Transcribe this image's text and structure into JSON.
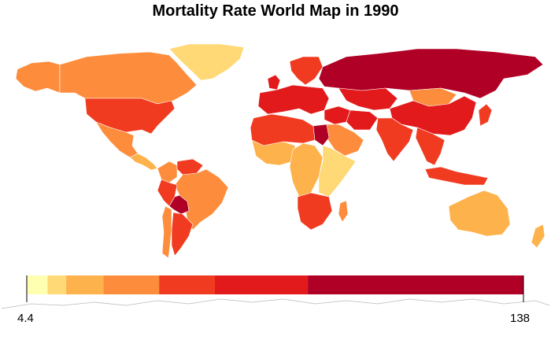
{
  "title": "Mortality Rate World Map in 1990",
  "legend": {
    "min_label": "4.4",
    "max_label": "138",
    "min": 4.4,
    "max": 138,
    "bins": [
      {
        "from": 4.4,
        "to": 10,
        "color": "#ffffb2"
      },
      {
        "from": 10,
        "to": 15,
        "color": "#fed976"
      },
      {
        "from": 15,
        "to": 25,
        "color": "#feb24c"
      },
      {
        "from": 25,
        "to": 40,
        "color": "#fd8d3c"
      },
      {
        "from": 40,
        "to": 55,
        "color": "#f03b20"
      },
      {
        "from": 55,
        "to": 80,
        "color": "#e31a1c"
      },
      {
        "from": 80,
        "to": 138,
        "color": "#b10026"
      }
    ]
  },
  "regions": [
    {
      "name": "canada",
      "level": 3
    },
    {
      "name": "alaska",
      "level": 3
    },
    {
      "name": "greenland",
      "level": 1
    },
    {
      "name": "usa",
      "level": 4
    },
    {
      "name": "mexico",
      "level": 3
    },
    {
      "name": "central-america",
      "level": 2
    },
    {
      "name": "colombia",
      "level": 3
    },
    {
      "name": "venezuela",
      "level": 4
    },
    {
      "name": "brazil",
      "level": 3
    },
    {
      "name": "peru",
      "level": 4
    },
    {
      "name": "bolivia",
      "level": 6
    },
    {
      "name": "argentina",
      "level": 4
    },
    {
      "name": "chile",
      "level": 3
    },
    {
      "name": "europe-west",
      "level": 5
    },
    {
      "name": "scandinavia",
      "level": 4
    },
    {
      "name": "uk",
      "level": 5
    },
    {
      "name": "russia",
      "level": 6
    },
    {
      "name": "kazakhstan",
      "level": 5
    },
    {
      "name": "middle-east",
      "level": 5
    },
    {
      "name": "arabia",
      "level": 3
    },
    {
      "name": "iran",
      "level": 5
    },
    {
      "name": "india",
      "level": 4
    },
    {
      "name": "china",
      "level": 5
    },
    {
      "name": "mongolia",
      "level": 3
    },
    {
      "name": "north-africa",
      "level": 4
    },
    {
      "name": "egypt",
      "level": 6
    },
    {
      "name": "west-africa",
      "level": 2
    },
    {
      "name": "central-africa",
      "level": 2
    },
    {
      "name": "east-africa",
      "level": 1
    },
    {
      "name": "southern-africa",
      "level": 4
    },
    {
      "name": "madagascar",
      "level": 3
    },
    {
      "name": "southeast-asia",
      "level": 4
    },
    {
      "name": "indonesia",
      "level": 4
    },
    {
      "name": "japan",
      "level": 4
    },
    {
      "name": "australia",
      "level": 2
    },
    {
      "name": "new-zealand",
      "level": 2
    }
  ]
}
